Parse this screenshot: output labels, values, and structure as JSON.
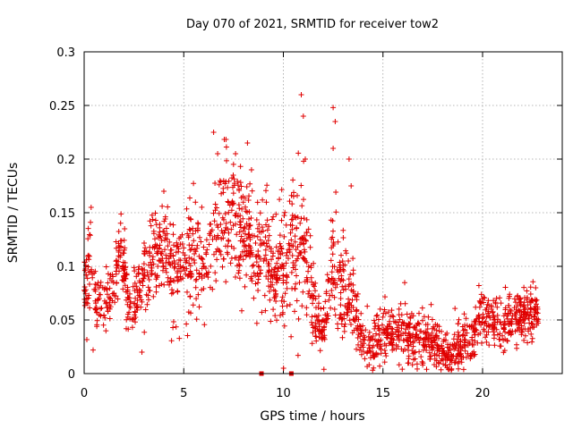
{
  "chart_data": {
    "type": "scatter",
    "title": "Day 070 of 2021, SRMTID for receiver tow2",
    "xlabel": "GPS time / hours",
    "ylabel": "SRMTID / TECUs",
    "xlim": [
      0,
      24
    ],
    "ylim": [
      0,
      0.3
    ],
    "xticks": [
      0,
      5,
      10,
      15,
      20
    ],
    "xtick_labels": [
      "0",
      "5",
      "10",
      "15",
      "20"
    ],
    "yticks": [
      0,
      0.05,
      0.1,
      0.15,
      0.2,
      0.25,
      0.3
    ],
    "ytick_labels": [
      "0",
      "0.05",
      "0.1",
      "0.15",
      "0.2",
      "0.25",
      "0.3"
    ],
    "grid": true,
    "marker": "+",
    "series_color": "#e00000",
    "trend": [
      [
        0.0,
        0.075,
        0.012
      ],
      [
        0.3,
        0.095,
        0.025
      ],
      [
        0.6,
        0.07,
        0.012
      ],
      [
        1.0,
        0.065,
        0.012
      ],
      [
        1.5,
        0.08,
        0.015
      ],
      [
        1.8,
        0.12,
        0.015
      ],
      [
        2.2,
        0.075,
        0.015
      ],
      [
        2.6,
        0.065,
        0.015
      ],
      [
        3.0,
        0.09,
        0.02
      ],
      [
        3.5,
        0.11,
        0.02
      ],
      [
        4.0,
        0.12,
        0.02
      ],
      [
        4.5,
        0.1,
        0.02
      ],
      [
        5.0,
        0.1,
        0.02
      ],
      [
        5.5,
        0.115,
        0.025
      ],
      [
        6.0,
        0.1,
        0.02
      ],
      [
        6.5,
        0.13,
        0.03
      ],
      [
        7.0,
        0.14,
        0.03
      ],
      [
        7.5,
        0.15,
        0.03
      ],
      [
        8.0,
        0.13,
        0.03
      ],
      [
        8.5,
        0.11,
        0.025
      ],
      [
        9.0,
        0.11,
        0.03
      ],
      [
        9.5,
        0.1,
        0.025
      ],
      [
        10.0,
        0.09,
        0.025
      ],
      [
        10.5,
        0.12,
        0.03
      ],
      [
        11.0,
        0.12,
        0.035
      ],
      [
        11.5,
        0.06,
        0.02
      ],
      [
        12.0,
        0.035,
        0.01
      ],
      [
        12.5,
        0.1,
        0.03
      ],
      [
        13.0,
        0.08,
        0.03
      ],
      [
        13.5,
        0.07,
        0.02
      ],
      [
        14.0,
        0.03,
        0.012
      ],
      [
        14.5,
        0.025,
        0.012
      ],
      [
        15.0,
        0.04,
        0.015
      ],
      [
        15.5,
        0.035,
        0.012
      ],
      [
        16.0,
        0.04,
        0.015
      ],
      [
        16.5,
        0.035,
        0.012
      ],
      [
        17.0,
        0.035,
        0.012
      ],
      [
        17.5,
        0.03,
        0.012
      ],
      [
        18.0,
        0.02,
        0.01
      ],
      [
        18.5,
        0.02,
        0.01
      ],
      [
        19.0,
        0.03,
        0.012
      ],
      [
        19.5,
        0.035,
        0.012
      ],
      [
        20.0,
        0.06,
        0.012
      ],
      [
        20.5,
        0.045,
        0.012
      ],
      [
        21.0,
        0.04,
        0.012
      ],
      [
        21.5,
        0.05,
        0.012
      ],
      [
        22.0,
        0.055,
        0.012
      ],
      [
        22.5,
        0.055,
        0.012
      ],
      [
        22.8,
        0.055,
        0.01
      ]
    ],
    "outliers": [
      [
        0.35,
        0.155
      ],
      [
        0.45,
        0.022
      ],
      [
        6.5,
        0.225
      ],
      [
        6.7,
        0.205
      ],
      [
        7.6,
        0.205
      ],
      [
        8.2,
        0.215
      ],
      [
        8.4,
        0.19
      ],
      [
        10.9,
        0.26
      ],
      [
        11.0,
        0.24
      ],
      [
        12.5,
        0.248
      ],
      [
        12.6,
        0.235
      ],
      [
        12.5,
        0.21
      ],
      [
        13.3,
        0.2
      ],
      [
        13.4,
        0.175
      ],
      [
        11.1,
        0.2
      ],
      [
        4.0,
        0.17
      ],
      [
        2.9,
        0.02
      ]
    ],
    "x_axis_markers": [
      8.9,
      10.4
    ],
    "n_points": 2000,
    "seed": 70
  }
}
